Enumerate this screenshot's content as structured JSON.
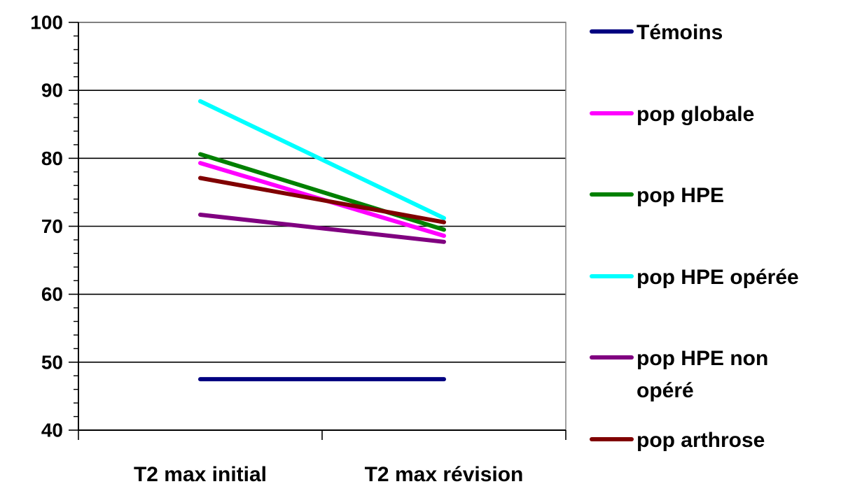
{
  "chart_data": {
    "type": "line",
    "categories": [
      "T2 max initial",
      "T2 max révision"
    ],
    "series": [
      {
        "name": "Témoins",
        "legend_lines": [
          "Témoins"
        ],
        "color": "#000080",
        "values": [
          47.5,
          47.5
        ]
      },
      {
        "name": "pop globale",
        "legend_lines": [
          "pop globale"
        ],
        "color": "#FF00FF",
        "values": [
          79.3,
          68.6
        ]
      },
      {
        "name": "pop HPE",
        "legend_lines": [
          "pop HPE"
        ],
        "color": "#008000",
        "values": [
          80.6,
          69.5
        ]
      },
      {
        "name": "pop HPE opérée",
        "legend_lines": [
          "pop HPE opérée"
        ],
        "color": "#00FFFF",
        "values": [
          88.4,
          71.2
        ]
      },
      {
        "name": "pop HPE non opéré",
        "legend_lines": [
          "pop HPE non",
          "opéré"
        ],
        "color": "#800080",
        "values": [
          71.7,
          67.7
        ]
      },
      {
        "name": "pop arthrose",
        "legend_lines": [
          "pop arthrose"
        ],
        "color": "#800000",
        "values": [
          77.1,
          70.6
        ]
      }
    ],
    "ylim": [
      40,
      100
    ],
    "y_ticks": [
      "40",
      "50",
      "60",
      "70",
      "80",
      "90",
      "100"
    ],
    "y_minor_step": 2,
    "grid": true,
    "legend_position": "right",
    "title": "",
    "xlabel": "",
    "ylabel": ""
  }
}
